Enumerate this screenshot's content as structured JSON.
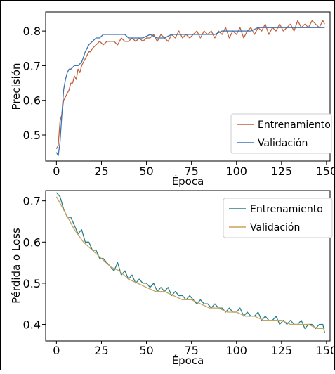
{
  "chart_data": [
    {
      "type": "line",
      "xlabel": "Época",
      "ylabel": "Precisión",
      "xlim": [
        -6,
        152
      ],
      "ylim": [
        0.425,
        0.855
      ],
      "xticks": [
        0,
        25,
        50,
        75,
        100,
        125,
        150
      ],
      "yticks": [
        0.5,
        0.6,
        0.7,
        0.8
      ],
      "xtick_labels": [
        "0",
        "25",
        "50",
        "75",
        "100",
        "125",
        "150"
      ],
      "ytick_labels": [
        "0.5",
        "0.6",
        "0.7",
        "0.8"
      ],
      "grid": false,
      "legend_position": "lower-right",
      "series": [
        {
          "name": "Entrenamiento",
          "color": "#c0623f",
          "x": [
            0,
            1,
            2,
            3,
            4,
            5,
            6,
            7,
            8,
            9,
            10,
            11,
            12,
            13,
            14,
            15,
            16,
            17,
            18,
            19,
            20,
            22,
            24,
            26,
            28,
            30,
            32,
            34,
            36,
            38,
            40,
            42,
            44,
            46,
            48,
            50,
            52,
            54,
            56,
            58,
            60,
            62,
            64,
            66,
            68,
            70,
            72,
            74,
            76,
            78,
            80,
            82,
            84,
            86,
            88,
            90,
            92,
            94,
            96,
            98,
            100,
            102,
            104,
            106,
            108,
            110,
            112,
            114,
            116,
            118,
            120,
            122,
            124,
            126,
            128,
            130,
            132,
            134,
            136,
            138,
            140,
            142,
            144,
            146,
            148,
            149
          ],
          "values": [
            0.46,
            0.47,
            0.54,
            0.56,
            0.6,
            0.61,
            0.62,
            0.63,
            0.65,
            0.65,
            0.67,
            0.66,
            0.69,
            0.68,
            0.7,
            0.71,
            0.72,
            0.73,
            0.74,
            0.74,
            0.75,
            0.76,
            0.77,
            0.76,
            0.77,
            0.77,
            0.77,
            0.76,
            0.78,
            0.77,
            0.77,
            0.78,
            0.77,
            0.78,
            0.77,
            0.78,
            0.78,
            0.79,
            0.77,
            0.79,
            0.78,
            0.77,
            0.79,
            0.78,
            0.8,
            0.78,
            0.79,
            0.78,
            0.79,
            0.8,
            0.78,
            0.8,
            0.79,
            0.8,
            0.78,
            0.8,
            0.79,
            0.81,
            0.78,
            0.8,
            0.79,
            0.81,
            0.78,
            0.8,
            0.81,
            0.79,
            0.81,
            0.8,
            0.82,
            0.79,
            0.81,
            0.8,
            0.82,
            0.8,
            0.81,
            0.82,
            0.8,
            0.83,
            0.81,
            0.82,
            0.81,
            0.83,
            0.82,
            0.81,
            0.83,
            0.82
          ]
        },
        {
          "name": "Validación",
          "color": "#3b73b4",
          "x": [
            0,
            1,
            2,
            3,
            4,
            5,
            6,
            7,
            8,
            10,
            12,
            14,
            16,
            18,
            20,
            22,
            24,
            26,
            28,
            30,
            32,
            34,
            36,
            38,
            40,
            44,
            48,
            52,
            56,
            60,
            64,
            68,
            72,
            76,
            80,
            84,
            88,
            92,
            96,
            100,
            104,
            108,
            112,
            116,
            120,
            124,
            128,
            132,
            136,
            140,
            144,
            148,
            149
          ],
          "values": [
            0.45,
            0.44,
            0.48,
            0.56,
            0.63,
            0.66,
            0.68,
            0.69,
            0.69,
            0.7,
            0.7,
            0.71,
            0.74,
            0.76,
            0.77,
            0.78,
            0.78,
            0.79,
            0.79,
            0.79,
            0.79,
            0.79,
            0.79,
            0.79,
            0.78,
            0.78,
            0.78,
            0.79,
            0.78,
            0.78,
            0.79,
            0.79,
            0.79,
            0.79,
            0.79,
            0.79,
            0.79,
            0.8,
            0.8,
            0.8,
            0.8,
            0.8,
            0.81,
            0.81,
            0.81,
            0.81,
            0.81,
            0.81,
            0.81,
            0.81,
            0.81,
            0.81,
            0.81
          ]
        }
      ]
    },
    {
      "type": "line",
      "xlabel": "Época",
      "ylabel": "Pérdida o Loss",
      "xlim": [
        -6,
        152
      ],
      "ylim": [
        0.36,
        0.725
      ],
      "xticks": [
        0,
        25,
        50,
        75,
        100,
        125,
        150
      ],
      "yticks": [
        0.4,
        0.5,
        0.6,
        0.7
      ],
      "xtick_labels": [
        "0",
        "25",
        "50",
        "75",
        "100",
        "125",
        "150"
      ],
      "ytick_labels": [
        "0.4",
        "0.5",
        "0.6",
        "0.7"
      ],
      "grid": false,
      "legend_position": "top-right",
      "series": [
        {
          "name": "Entrenamiento",
          "color": "#2a7f86",
          "x": [
            0,
            2,
            4,
            6,
            8,
            10,
            12,
            14,
            16,
            18,
            20,
            22,
            24,
            26,
            28,
            30,
            32,
            34,
            36,
            38,
            40,
            42,
            44,
            46,
            48,
            50,
            52,
            54,
            56,
            58,
            60,
            62,
            64,
            66,
            68,
            70,
            72,
            74,
            76,
            78,
            80,
            82,
            84,
            86,
            88,
            90,
            92,
            94,
            96,
            98,
            100,
            102,
            104,
            106,
            108,
            110,
            112,
            114,
            116,
            118,
            120,
            122,
            124,
            126,
            128,
            130,
            132,
            134,
            136,
            138,
            140,
            142,
            144,
            146,
            148,
            149
          ],
          "values": [
            0.72,
            0.71,
            0.68,
            0.66,
            0.66,
            0.64,
            0.62,
            0.63,
            0.6,
            0.6,
            0.58,
            0.58,
            0.56,
            0.56,
            0.55,
            0.54,
            0.53,
            0.55,
            0.52,
            0.53,
            0.51,
            0.52,
            0.5,
            0.51,
            0.5,
            0.5,
            0.49,
            0.5,
            0.48,
            0.49,
            0.48,
            0.49,
            0.47,
            0.48,
            0.47,
            0.47,
            0.46,
            0.47,
            0.46,
            0.45,
            0.46,
            0.45,
            0.45,
            0.44,
            0.45,
            0.44,
            0.44,
            0.43,
            0.44,
            0.43,
            0.43,
            0.44,
            0.42,
            0.43,
            0.42,
            0.42,
            0.43,
            0.41,
            0.42,
            0.41,
            0.41,
            0.42,
            0.4,
            0.41,
            0.4,
            0.41,
            0.4,
            0.4,
            0.41,
            0.39,
            0.4,
            0.4,
            0.39,
            0.4,
            0.4,
            0.38
          ]
        },
        {
          "name": "Validación",
          "color": "#c9a25a",
          "x": [
            0,
            5,
            10,
            15,
            20,
            25,
            30,
            35,
            40,
            45,
            50,
            55,
            60,
            65,
            70,
            75,
            80,
            85,
            90,
            95,
            100,
            105,
            110,
            115,
            120,
            125,
            130,
            135,
            140,
            145,
            149
          ],
          "values": [
            0.71,
            0.67,
            0.63,
            0.6,
            0.58,
            0.56,
            0.54,
            0.53,
            0.51,
            0.5,
            0.49,
            0.48,
            0.48,
            0.47,
            0.46,
            0.46,
            0.45,
            0.44,
            0.44,
            0.43,
            0.43,
            0.42,
            0.42,
            0.41,
            0.41,
            0.41,
            0.4,
            0.4,
            0.4,
            0.39,
            0.39
          ]
        }
      ]
    }
  ]
}
